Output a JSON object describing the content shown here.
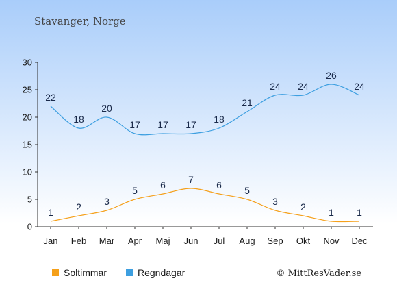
{
  "chart_data": {
    "type": "line",
    "title": "Stavanger, Norge",
    "categories": [
      "Jan",
      "Feb",
      "Mar",
      "Apr",
      "Maj",
      "Jun",
      "Jul",
      "Aug",
      "Sep",
      "Okt",
      "Nov",
      "Dec"
    ],
    "series": [
      {
        "name": "Soltimmar",
        "values": [
          1,
          2,
          3,
          5,
          6,
          7,
          6,
          5,
          3,
          2,
          1,
          1
        ],
        "color": "#f5a01a"
      },
      {
        "name": "Regndagar",
        "values": [
          22,
          18,
          20,
          17,
          17,
          17,
          18,
          21,
          24,
          24,
          26,
          24
        ],
        "color": "#3d9fe0"
      }
    ],
    "ylim": [
      0,
      30
    ],
    "yticks": [
      0,
      5,
      10,
      15,
      20,
      25,
      30
    ],
    "grid": false,
    "legend_position": "bottom-left"
  },
  "credit": "© MittResVader.se",
  "colors": {
    "background_top": "#a9cdfa",
    "background_bottom": "#ffffff"
  }
}
